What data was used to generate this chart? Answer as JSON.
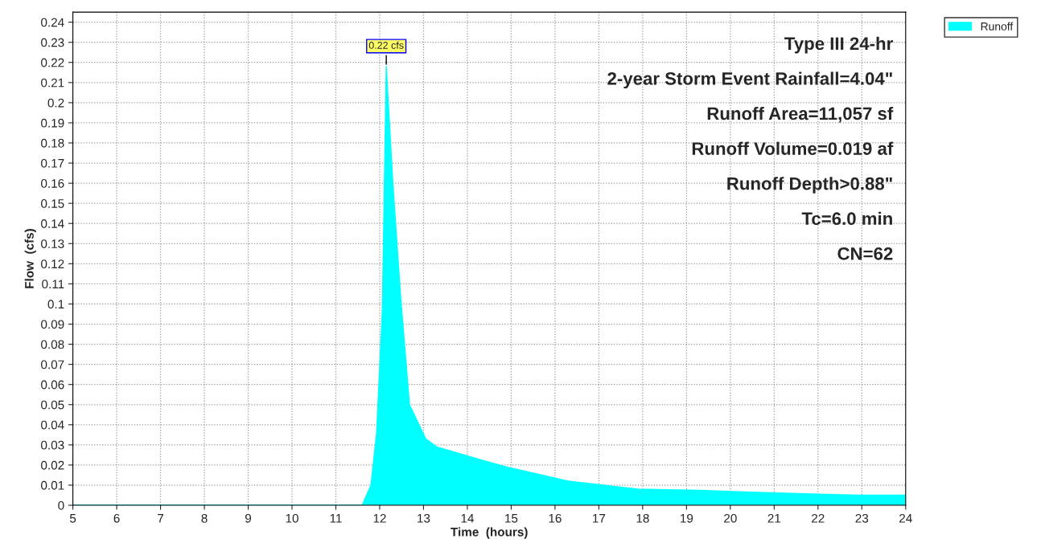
{
  "chart_data": {
    "type": "area",
    "xlabel": "Time  (hours)",
    "ylabel": "Flow  (cfs)",
    "x": [
      5,
      11.6,
      11.8,
      11.93,
      12.06,
      12.15,
      12.3,
      12.48,
      12.68,
      13.05,
      13.3,
      14.4,
      14.9,
      15.1,
      16.3,
      17.1,
      17.9,
      19.3,
      20.3,
      21.7,
      22.9,
      24
    ],
    "series": [
      {
        "name": "Runoff",
        "color": "#00ffff",
        "values": [
          0,
          0,
          0.01,
          0.036,
          0.097,
          0.218,
          0.16,
          0.103,
          0.05,
          0.033,
          0.029,
          0.022,
          0.019,
          0.018,
          0.012,
          0.01,
          0.008,
          0.0074,
          0.0066,
          0.0057,
          0.005,
          0.005
        ]
      }
    ],
    "xlim": [
      5,
      24
    ],
    "xticks": [
      5,
      6,
      7,
      8,
      9,
      10,
      11,
      12,
      13,
      14,
      15,
      16,
      17,
      18,
      19,
      20,
      21,
      22,
      23,
      24
    ],
    "ylim": [
      0,
      0.245
    ],
    "yticks": [
      0,
      0.01,
      0.02,
      0.03,
      0.04,
      0.05,
      0.06,
      0.07,
      0.08,
      0.09,
      0.1,
      0.11,
      0.12,
      0.13,
      0.14,
      0.15,
      0.16,
      0.17,
      0.18,
      0.19,
      0.2,
      0.21,
      0.22,
      0.23,
      0.24
    ],
    "annotations": [
      {
        "text": "0.22 cfs",
        "x": 12.15,
        "y": 0.218
      },
      "Type III 24-hr",
      "2-year Storm Event Rainfall=4.04\"",
      "Runoff Area=11,057 sf",
      "Runoff Volume=0.019 af",
      "Runoff Depth>0.88\"",
      "Tc=6.0 min",
      "CN=62"
    ],
    "grid": true,
    "legend": "top right"
  }
}
